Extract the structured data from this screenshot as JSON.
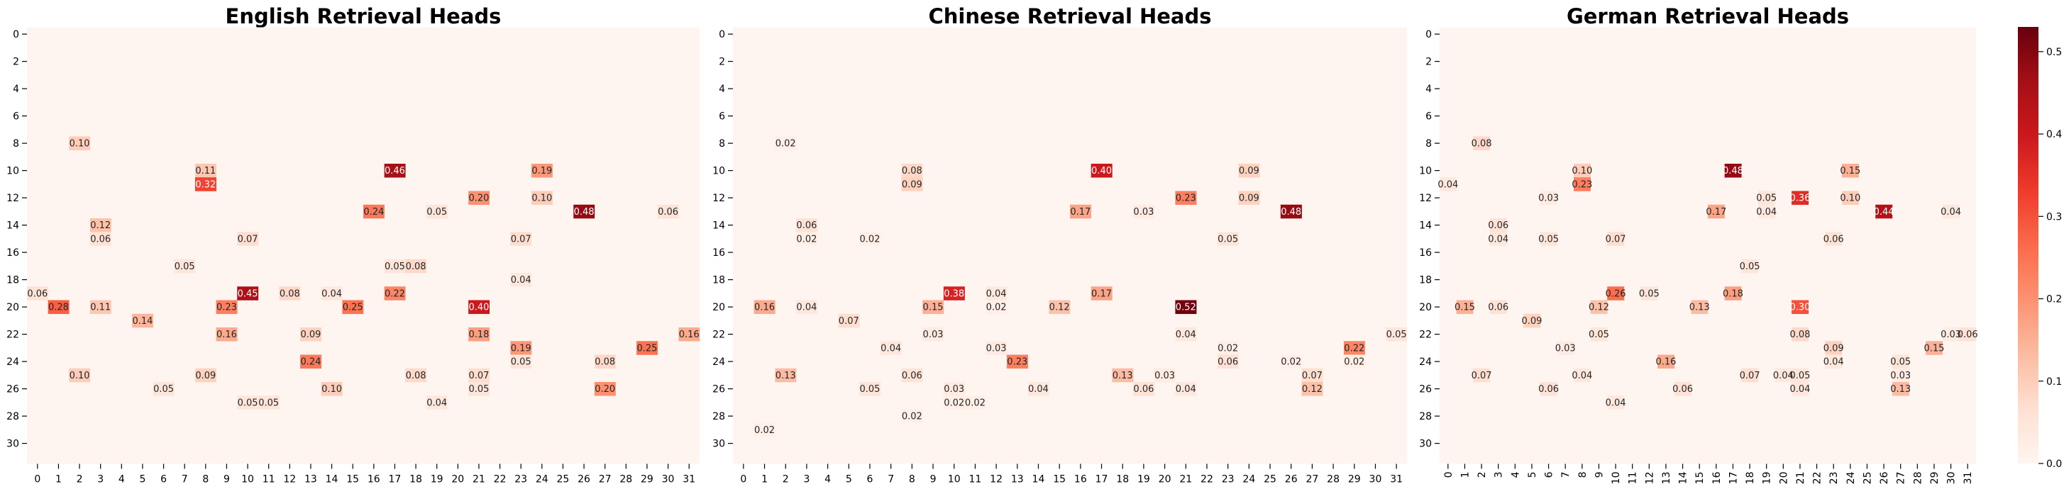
{
  "colormap": {
    "name": "Reds",
    "min": 0.0,
    "max": 0.53,
    "stops": [
      "#fff5f0",
      "#fee0d2",
      "#fcbba1",
      "#fc9272",
      "#fb6a4a",
      "#ef3b2c",
      "#cb181d",
      "#a50f15",
      "#67000d"
    ]
  },
  "colorbar_ticks": [
    "0.0",
    "0.1",
    "0.2",
    "0.3",
    "0.4",
    "0.5"
  ],
  "chart_data": [
    {
      "type": "heatmap",
      "title": "English Retrieval Heads",
      "x_ticks": [
        "0",
        "1",
        "2",
        "3",
        "4",
        "5",
        "6",
        "7",
        "8",
        "9",
        "10",
        "11",
        "12",
        "13",
        "14",
        "15",
        "16",
        "17",
        "18",
        "19",
        "20",
        "21",
        "22",
        "23",
        "24",
        "25",
        "26",
        "27",
        "28",
        "29",
        "30",
        "31"
      ],
      "y_ticks": [
        "0",
        "2",
        "4",
        "6",
        "8",
        "10",
        "12",
        "14",
        "16",
        "18",
        "20",
        "22",
        "24",
        "26",
        "28",
        "30"
      ],
      "x_rotated": false,
      "rows": 32,
      "cols": 32,
      "cells": [
        {
          "r": 8,
          "c": 2,
          "v": 0.1
        },
        {
          "r": 10,
          "c": 8,
          "v": 0.11
        },
        {
          "r": 10,
          "c": 17,
          "v": 0.46
        },
        {
          "r": 10,
          "c": 24,
          "v": 0.19
        },
        {
          "r": 11,
          "c": 8,
          "v": 0.32
        },
        {
          "r": 12,
          "c": 21,
          "v": 0.2
        },
        {
          "r": 12,
          "c": 24,
          "v": 0.1
        },
        {
          "r": 13,
          "c": 16,
          "v": 0.24
        },
        {
          "r": 13,
          "c": 19,
          "v": 0.05
        },
        {
          "r": 13,
          "c": 26,
          "v": 0.48
        },
        {
          "r": 13,
          "c": 30,
          "v": 0.06
        },
        {
          "r": 14,
          "c": 3,
          "v": 0.12
        },
        {
          "r": 15,
          "c": 3,
          "v": 0.06
        },
        {
          "r": 15,
          "c": 10,
          "v": 0.07
        },
        {
          "r": 15,
          "c": 23,
          "v": 0.07
        },
        {
          "r": 17,
          "c": 7,
          "v": 0.05
        },
        {
          "r": 17,
          "c": 17,
          "v": 0.05
        },
        {
          "r": 17,
          "c": 18,
          "v": 0.08
        },
        {
          "r": 18,
          "c": 23,
          "v": 0.04
        },
        {
          "r": 19,
          "c": 0,
          "v": 0.06
        },
        {
          "r": 19,
          "c": 10,
          "v": 0.45
        },
        {
          "r": 19,
          "c": 12,
          "v": 0.08
        },
        {
          "r": 19,
          "c": 14,
          "v": 0.04
        },
        {
          "r": 19,
          "c": 17,
          "v": 0.22
        },
        {
          "r": 20,
          "c": 1,
          "v": 0.28
        },
        {
          "r": 20,
          "c": 3,
          "v": 0.11
        },
        {
          "r": 20,
          "c": 9,
          "v": 0.23
        },
        {
          "r": 20,
          "c": 15,
          "v": 0.25
        },
        {
          "r": 20,
          "c": 21,
          "v": 0.4
        },
        {
          "r": 21,
          "c": 5,
          "v": 0.14
        },
        {
          "r": 22,
          "c": 9,
          "v": 0.16
        },
        {
          "r": 22,
          "c": 13,
          "v": 0.09
        },
        {
          "r": 22,
          "c": 21,
          "v": 0.18
        },
        {
          "r": 22,
          "c": 31,
          "v": 0.16
        },
        {
          "r": 23,
          "c": 23,
          "v": 0.19
        },
        {
          "r": 23,
          "c": 29,
          "v": 0.25
        },
        {
          "r": 24,
          "c": 13,
          "v": 0.24
        },
        {
          "r": 24,
          "c": 23,
          "v": 0.05
        },
        {
          "r": 24,
          "c": 27,
          "v": 0.08
        },
        {
          "r": 25,
          "c": 2,
          "v": 0.1
        },
        {
          "r": 25,
          "c": 8,
          "v": 0.09
        },
        {
          "r": 25,
          "c": 18,
          "v": 0.08
        },
        {
          "r": 25,
          "c": 21,
          "v": 0.07
        },
        {
          "r": 26,
          "c": 6,
          "v": 0.05
        },
        {
          "r": 26,
          "c": 14,
          "v": 0.1
        },
        {
          "r": 26,
          "c": 21,
          "v": 0.05
        },
        {
          "r": 26,
          "c": 27,
          "v": 0.2
        },
        {
          "r": 27,
          "c": 10,
          "v": 0.05
        },
        {
          "r": 27,
          "c": 11,
          "v": 0.05
        },
        {
          "r": 27,
          "c": 19,
          "v": 0.04
        }
      ]
    },
    {
      "type": "heatmap",
      "title": "Chinese Retrieval Heads",
      "x_ticks": [
        "0",
        "1",
        "2",
        "3",
        "4",
        "5",
        "6",
        "7",
        "8",
        "9",
        "10",
        "11",
        "12",
        "13",
        "14",
        "15",
        "16",
        "17",
        "18",
        "19",
        "20",
        "21",
        "22",
        "23",
        "24",
        "25",
        "26",
        "27",
        "28",
        "29",
        "30",
        "31"
      ],
      "y_ticks": [
        "0",
        "2",
        "4",
        "6",
        "8",
        "10",
        "12",
        "14",
        "16",
        "18",
        "20",
        "22",
        "24",
        "26",
        "28",
        "30"
      ],
      "x_rotated": false,
      "rows": 32,
      "cols": 32,
      "cells": [
        {
          "r": 8,
          "c": 2,
          "v": 0.02
        },
        {
          "r": 10,
          "c": 8,
          "v": 0.08
        },
        {
          "r": 10,
          "c": 17,
          "v": 0.4
        },
        {
          "r": 10,
          "c": 24,
          "v": 0.09
        },
        {
          "r": 11,
          "c": 8,
          "v": 0.09
        },
        {
          "r": 12,
          "c": 21,
          "v": 0.23
        },
        {
          "r": 12,
          "c": 24,
          "v": 0.09
        },
        {
          "r": 13,
          "c": 16,
          "v": 0.17
        },
        {
          "r": 13,
          "c": 19,
          "v": 0.03
        },
        {
          "r": 13,
          "c": 26,
          "v": 0.48
        },
        {
          "r": 14,
          "c": 3,
          "v": 0.06
        },
        {
          "r": 15,
          "c": 3,
          "v": 0.02
        },
        {
          "r": 15,
          "c": 6,
          "v": 0.02
        },
        {
          "r": 15,
          "c": 23,
          "v": 0.05
        },
        {
          "r": 19,
          "c": 10,
          "v": 0.38
        },
        {
          "r": 19,
          "c": 12,
          "v": 0.04
        },
        {
          "r": 19,
          "c": 17,
          "v": 0.17
        },
        {
          "r": 20,
          "c": 1,
          "v": 0.16
        },
        {
          "r": 20,
          "c": 3,
          "v": 0.04
        },
        {
          "r": 20,
          "c": 9,
          "v": 0.15
        },
        {
          "r": 20,
          "c": 12,
          "v": 0.02
        },
        {
          "r": 20,
          "c": 15,
          "v": 0.12
        },
        {
          "r": 20,
          "c": 21,
          "v": 0.52
        },
        {
          "r": 21,
          "c": 5,
          "v": 0.07
        },
        {
          "r": 22,
          "c": 9,
          "v": 0.03
        },
        {
          "r": 22,
          "c": 21,
          "v": 0.04
        },
        {
          "r": 22,
          "c": 31,
          "v": 0.05
        },
        {
          "r": 23,
          "c": 7,
          "v": 0.04
        },
        {
          "r": 23,
          "c": 12,
          "v": 0.03
        },
        {
          "r": 23,
          "c": 23,
          "v": 0.02
        },
        {
          "r": 23,
          "c": 29,
          "v": 0.22
        },
        {
          "r": 24,
          "c": 13,
          "v": 0.23
        },
        {
          "r": 24,
          "c": 23,
          "v": 0.06
        },
        {
          "r": 24,
          "c": 26,
          "v": 0.02
        },
        {
          "r": 24,
          "c": 29,
          "v": 0.02
        },
        {
          "r": 25,
          "c": 2,
          "v": 0.13
        },
        {
          "r": 25,
          "c": 8,
          "v": 0.06
        },
        {
          "r": 25,
          "c": 18,
          "v": 0.13
        },
        {
          "r": 25,
          "c": 20,
          "v": 0.03
        },
        {
          "r": 25,
          "c": 27,
          "v": 0.07
        },
        {
          "r": 26,
          "c": 6,
          "v": 0.05
        },
        {
          "r": 26,
          "c": 10,
          "v": 0.03
        },
        {
          "r": 26,
          "c": 14,
          "v": 0.04
        },
        {
          "r": 26,
          "c": 19,
          "v": 0.06
        },
        {
          "r": 26,
          "c": 21,
          "v": 0.04
        },
        {
          "r": 26,
          "c": 27,
          "v": 0.12
        },
        {
          "r": 27,
          "c": 10,
          "v": 0.02
        },
        {
          "r": 27,
          "c": 11,
          "v": 0.02
        },
        {
          "r": 28,
          "c": 8,
          "v": 0.02
        },
        {
          "r": 29,
          "c": 1,
          "v": 0.02
        }
      ]
    },
    {
      "type": "heatmap",
      "title": "German Retrieval Heads",
      "x_ticks": [
        "0",
        "1",
        "2",
        "3",
        "4",
        "5",
        "6",
        "7",
        "8",
        "9",
        "10",
        "11",
        "12",
        "13",
        "14",
        "15",
        "16",
        "17",
        "18",
        "19",
        "20",
        "21",
        "22",
        "23",
        "24",
        "25",
        "26",
        "27",
        "28",
        "29",
        "30",
        "31"
      ],
      "y_ticks": [
        "0",
        "2",
        "4",
        "6",
        "8",
        "10",
        "12",
        "14",
        "16",
        "18",
        "20",
        "22",
        "24",
        "26",
        "28",
        "30"
      ],
      "x_rotated": true,
      "rows": 32,
      "cols": 32,
      "cells": [
        {
          "r": 8,
          "c": 2,
          "v": 0.08
        },
        {
          "r": 10,
          "c": 8,
          "v": 0.1
        },
        {
          "r": 10,
          "c": 17,
          "v": 0.48
        },
        {
          "r": 10,
          "c": 24,
          "v": 0.15
        },
        {
          "r": 11,
          "c": 0,
          "v": 0.04
        },
        {
          "r": 11,
          "c": 8,
          "v": 0.23
        },
        {
          "r": 12,
          "c": 6,
          "v": 0.03
        },
        {
          "r": 12,
          "c": 19,
          "v": 0.05
        },
        {
          "r": 12,
          "c": 21,
          "v": 0.36
        },
        {
          "r": 12,
          "c": 24,
          "v": 0.1
        },
        {
          "r": 13,
          "c": 16,
          "v": 0.17
        },
        {
          "r": 13,
          "c": 19,
          "v": 0.04
        },
        {
          "r": 13,
          "c": 26,
          "v": 0.44
        },
        {
          "r": 13,
          "c": 30,
          "v": 0.04
        },
        {
          "r": 14,
          "c": 3,
          "v": 0.06
        },
        {
          "r": 15,
          "c": 3,
          "v": 0.04
        },
        {
          "r": 15,
          "c": 6,
          "v": 0.05
        },
        {
          "r": 15,
          "c": 10,
          "v": 0.07
        },
        {
          "r": 15,
          "c": 23,
          "v": 0.06
        },
        {
          "r": 17,
          "c": 18,
          "v": 0.05
        },
        {
          "r": 19,
          "c": 10,
          "v": 0.26
        },
        {
          "r": 19,
          "c": 12,
          "v": 0.05
        },
        {
          "r": 19,
          "c": 17,
          "v": 0.18
        },
        {
          "r": 20,
          "c": 1,
          "v": 0.15
        },
        {
          "r": 20,
          "c": 3,
          "v": 0.06
        },
        {
          "r": 20,
          "c": 9,
          "v": 0.12
        },
        {
          "r": 20,
          "c": 15,
          "v": 0.13
        },
        {
          "r": 20,
          "c": 21,
          "v": 0.3
        },
        {
          "r": 21,
          "c": 5,
          "v": 0.09
        },
        {
          "r": 22,
          "c": 9,
          "v": 0.05
        },
        {
          "r": 22,
          "c": 21,
          "v": 0.08
        },
        {
          "r": 22,
          "c": 30,
          "v": 0.03
        },
        {
          "r": 22,
          "c": 31,
          "v": 0.06
        },
        {
          "r": 23,
          "c": 7,
          "v": 0.03
        },
        {
          "r": 23,
          "c": 23,
          "v": 0.09
        },
        {
          "r": 23,
          "c": 29,
          "v": 0.15
        },
        {
          "r": 24,
          "c": 13,
          "v": 0.16
        },
        {
          "r": 24,
          "c": 23,
          "v": 0.04
        },
        {
          "r": 24,
          "c": 27,
          "v": 0.05
        },
        {
          "r": 25,
          "c": 2,
          "v": 0.07
        },
        {
          "r": 25,
          "c": 8,
          "v": 0.04
        },
        {
          "r": 25,
          "c": 18,
          "v": 0.07
        },
        {
          "r": 25,
          "c": 20,
          "v": 0.04
        },
        {
          "r": 25,
          "c": 21,
          "v": 0.05
        },
        {
          "r": 25,
          "c": 27,
          "v": 0.03
        },
        {
          "r": 26,
          "c": 6,
          "v": 0.06
        },
        {
          "r": 26,
          "c": 14,
          "v": 0.06
        },
        {
          "r": 26,
          "c": 21,
          "v": 0.04
        },
        {
          "r": 26,
          "c": 27,
          "v": 0.13
        },
        {
          "r": 27,
          "c": 10,
          "v": 0.04
        }
      ]
    }
  ]
}
